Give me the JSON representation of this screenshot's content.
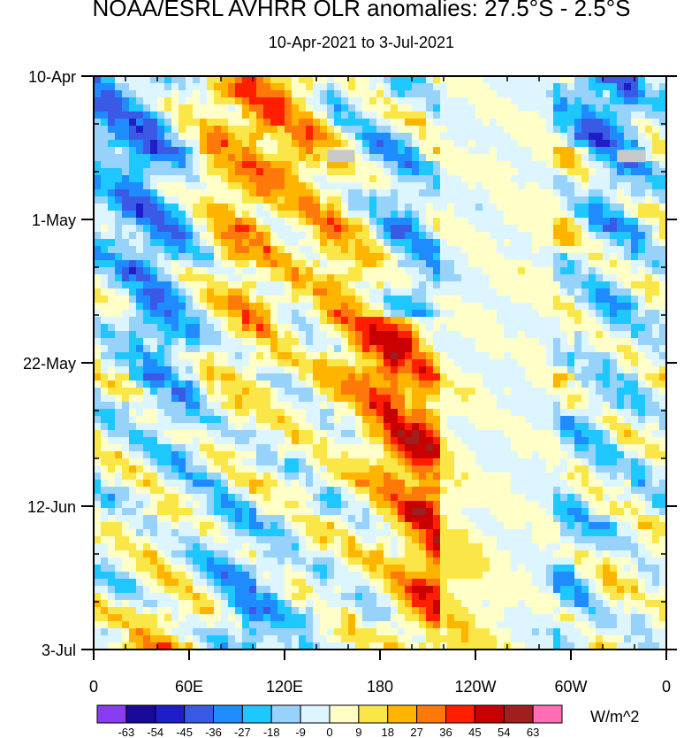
{
  "chart_data": {
    "type": "heatmap",
    "title": "NOAA/ESRL AVHRR OLR anomalies: 27.5°S - 2.5°S",
    "subtitle": "10-Apr-2021 to 3-Jul-2021",
    "x_ticks": [
      "0",
      "60E",
      "120E",
      "180",
      "120W",
      "60W",
      "0"
    ],
    "x_tick_values_deg": [
      0,
      60,
      120,
      180,
      240,
      300,
      360
    ],
    "y_ticks": [
      "10-Apr",
      "1-May",
      "22-May",
      "12-Jun",
      "3-Jul"
    ],
    "y_tick_values_day": [
      0,
      21,
      42,
      63,
      84
    ],
    "x_range_deg": [
      0,
      360
    ],
    "y_range_day": [
      0,
      84
    ],
    "colorbar": {
      "units": "W/m^2",
      "labels": [
        "-63",
        "-54",
        "-45",
        "-36",
        "-27",
        "-18",
        "-9",
        "0",
        "9",
        "18",
        "27",
        "36",
        "45",
        "54",
        "63"
      ],
      "colors": [
        "#8a3cf0",
        "#1a0a9a",
        "#1e1ec8",
        "#3a5ae6",
        "#1e8cff",
        "#1ec8ff",
        "#96d2fa",
        "#dcf5ff",
        "#ffffc8",
        "#fae646",
        "#ffb400",
        "#ff780a",
        "#ff1e00",
        "#c80000",
        "#a01e1e",
        "#ff6eb4"
      ]
    },
    "bands": [
      {
        "name": "negative-band-1",
        "sign": -1,
        "lon_start": 15,
        "lon_end": 95,
        "day_start": 0,
        "day_end": 84,
        "strength": 0.75
      },
      {
        "name": "negative-band-2",
        "sign": -1,
        "lon_start": 150,
        "lon_end": 200,
        "day_start": 0,
        "day_end": 35,
        "strength": 0.9
      },
      {
        "name": "positive-band-1",
        "sign": 1,
        "lon_start": 140,
        "lon_end": 230,
        "day_start": 0,
        "day_end": 84,
        "strength": 0.9
      },
      {
        "name": "positive-band-2",
        "sign": 1,
        "lon_start": 100,
        "lon_end": 60,
        "day_start": 0,
        "day_end": 84,
        "strength": 0.55
      },
      {
        "name": "negative-band-3",
        "sign": -1,
        "lon_start": 320,
        "lon_end": 300,
        "day_start": 0,
        "day_end": 84,
        "strength": 0.7
      },
      {
        "name": "positive-band-3",
        "sign": 1,
        "lon_start": 300,
        "lon_end": 310,
        "day_start": 10,
        "day_end": 84,
        "strength": 0.5
      }
    ],
    "missing_data": [
      {
        "lon_start": 147,
        "lon_end": 164,
        "day_start": 10.8,
        "day_end": 12.6
      },
      {
        "lon_start": 329,
        "lon_end": 347,
        "day_start": 10.8,
        "day_end": 12.6
      }
    ]
  }
}
